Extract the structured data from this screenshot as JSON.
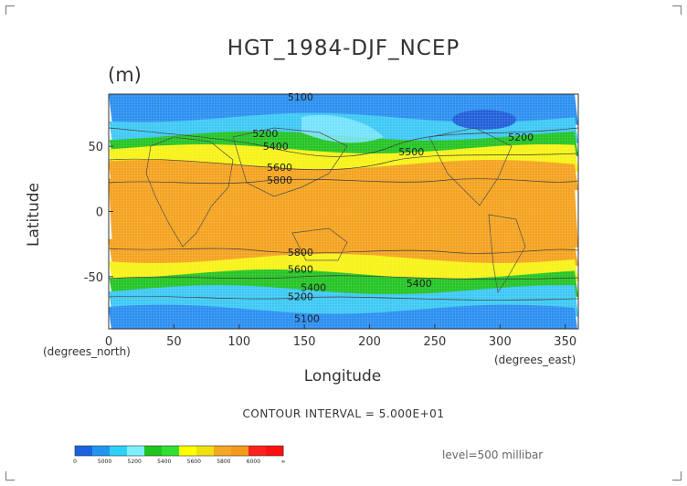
{
  "chart_data": {
    "type": "heatmap",
    "title": "HGT_1984-DJF_NCEP",
    "units": "(m)",
    "xlabel": "Longitude",
    "ylabel": "Latitude",
    "x_unit_label": "(degrees_east)",
    "y_unit_label": "(degrees_north)",
    "xlim": [
      0,
      360
    ],
    "ylim": [
      -90,
      90
    ],
    "x_ticks": [
      0,
      50,
      100,
      150,
      200,
      250,
      300,
      350
    ],
    "y_ticks": [
      50,
      0,
      -50
    ],
    "contour_interval_text": "CONTOUR INTERVAL = 5.000E+01",
    "level_text": "level=500 millibar",
    "bands": [
      {
        "lat_from": 90,
        "lat_to": 72,
        "value": 5100
      },
      {
        "lat_from": 72,
        "lat_to": 58,
        "value": 5200
      },
      {
        "lat_from": 58,
        "lat_to": 48,
        "value": 5400
      },
      {
        "lat_from": 48,
        "lat_to": 36,
        "value": 5600
      },
      {
        "lat_from": 36,
        "lat_to": 22,
        "value": 5800
      },
      {
        "lat_from": 22,
        "lat_to": -22,
        "value": 5900
      },
      {
        "lat_from": -22,
        "lat_to": -36,
        "value": 5800
      },
      {
        "lat_from": -36,
        "lat_to": -48,
        "value": 5600
      },
      {
        "lat_from": -48,
        "lat_to": -60,
        "value": 5400
      },
      {
        "lat_from": -60,
        "lat_to": -75,
        "value": 5200
      },
      {
        "lat_from": -75,
        "lat_to": -90,
        "value": 5100
      }
    ],
    "contour_labels": [
      {
        "text": "5100",
        "lon": 147,
        "lat": 88
      },
      {
        "text": "5200",
        "lon": 120,
        "lat": 60
      },
      {
        "text": "5400",
        "lon": 128,
        "lat": 50
      },
      {
        "text": "5500",
        "lon": 232,
        "lat": 46
      },
      {
        "text": "5200",
        "lon": 316,
        "lat": 57
      },
      {
        "text": "5600",
        "lon": 131,
        "lat": 34
      },
      {
        "text": "5800",
        "lon": 131,
        "lat": 24
      },
      {
        "text": "5800",
        "lon": 147,
        "lat": -31
      },
      {
        "text": "5600",
        "lon": 147,
        "lat": -44
      },
      {
        "text": "5400",
        "lon": 157,
        "lat": -58
      },
      {
        "text": "5200",
        "lon": 147,
        "lat": -65
      },
      {
        "text": "5400",
        "lon": 238,
        "lat": -55
      },
      {
        "text": "5100",
        "lon": 152,
        "lat": -82
      }
    ],
    "colorbar": {
      "ticks": [
        "0",
        "5000",
        "5200",
        "5400",
        "5600",
        "5800",
        "6000",
        "∞"
      ],
      "colors": [
        "#1a62e0",
        "#2196f0",
        "#2ed0f8",
        "#7cf0ff",
        "#1ec51e",
        "#30e030",
        "#ffff00",
        "#f0e010",
        "#f5a623",
        "#f39a1a",
        "#ff2020",
        "#ff1010"
      ]
    },
    "value_colors": {
      "5100": "#2a8ef0",
      "5200": "#3cc8f4",
      "5400": "#22c322",
      "5600": "#f7f214",
      "5800": "#f4a21e",
      "5900": "#f4a21e",
      "low": "#1f5ed8"
    }
  }
}
